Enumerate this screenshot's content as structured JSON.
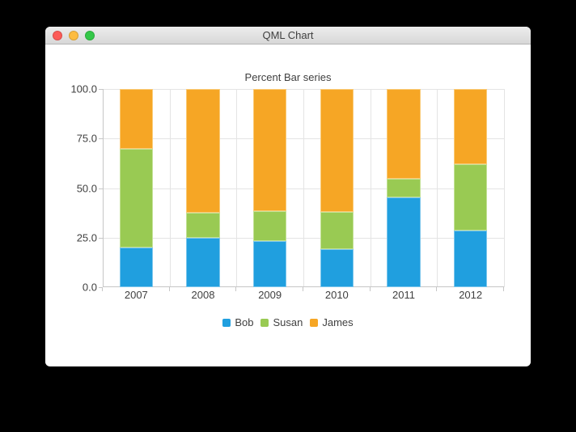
{
  "window": {
    "title": "QML Chart",
    "controls": [
      {
        "name": "close",
        "color": "#fc5b57"
      },
      {
        "name": "minimize",
        "color": "#fdbc40"
      },
      {
        "name": "zoom",
        "color": "#34c848"
      }
    ]
  },
  "chart_data": {
    "type": "bar",
    "variant": "percent-stacked",
    "title": "Percent Bar series",
    "categories": [
      "2007",
      "2008",
      "2009",
      "2010",
      "2011",
      "2012"
    ],
    "series": [
      {
        "name": "Bob",
        "color": "#209fdf",
        "border_color": "#7cc6ec",
        "percent_values": [
          20.0,
          25.0,
          23.08,
          19.05,
          45.45,
          28.57
        ]
      },
      {
        "name": "Susan",
        "color": "#99ca53",
        "border_color": "#c3e196",
        "percent_values": [
          50.0,
          12.5,
          15.38,
          19.05,
          9.09,
          33.33
        ]
      },
      {
        "name": "James",
        "color": "#f6a625",
        "border_color": "#facb77",
        "percent_values": [
          30.0,
          62.5,
          61.54,
          61.9,
          45.46,
          38.1
        ]
      }
    ],
    "y_tick_labels": [
      "100.0",
      "75.0",
      "50.0",
      "25.0",
      "0.0"
    ],
    "ylim": [
      0,
      100
    ],
    "grid": true,
    "legend_position": "bottom"
  }
}
